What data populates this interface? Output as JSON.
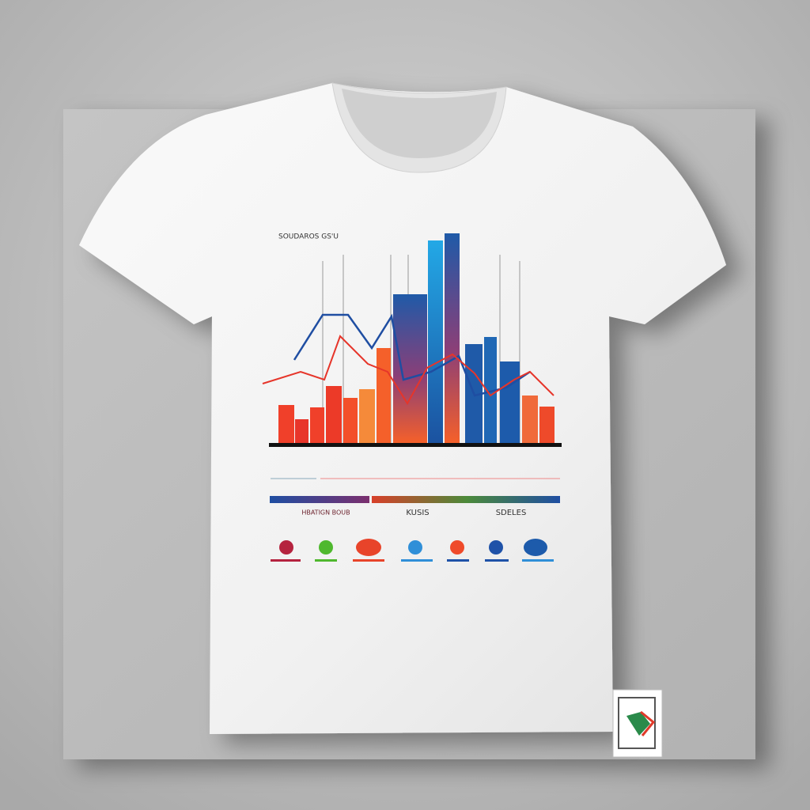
{
  "shirt_print": {
    "title": "SOUDAROS GS'U",
    "labels": [
      "HBATIGN BOUB",
      "KUSIS",
      "SDELES"
    ]
  }
}
